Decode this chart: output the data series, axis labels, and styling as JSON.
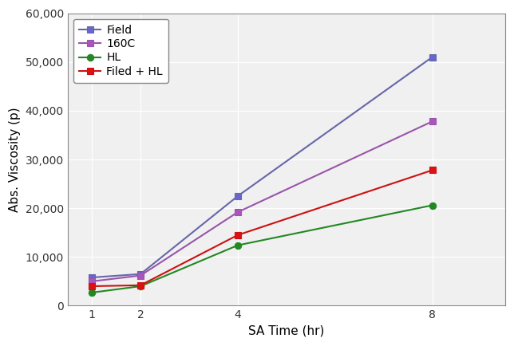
{
  "x": [
    1,
    2,
    4,
    8
  ],
  "series": {
    "Field": {
      "values": [
        5800,
        6500,
        22500,
        51000
      ],
      "color": "#6666aa",
      "marker": "s",
      "markerface": "#6666cc"
    },
    "160C": {
      "values": [
        5000,
        6200,
        19200,
        37800
      ],
      "color": "#9955aa",
      "marker": "s",
      "markerface": "#aa55bb"
    },
    "HL": {
      "values": [
        2700,
        4000,
        12400,
        20600
      ],
      "color": "#228822",
      "marker": "o",
      "markerface": "#228822"
    },
    "Filed + HL": {
      "values": [
        4000,
        4200,
        14500,
        27800
      ],
      "color": "#cc1111",
      "marker": "s",
      "markerface": "#dd1111"
    }
  },
  "xlabel": "SA Time (hr)",
  "ylabel": "Abs. Viscosity (p)",
  "ylim": [
    0,
    60000
  ],
  "yticks": [
    0,
    10000,
    20000,
    30000,
    40000,
    50000,
    60000
  ],
  "xticks": [
    1,
    2,
    4,
    8
  ],
  "legend_order": [
    "Field",
    "160C",
    "HL",
    "Filed + HL"
  ],
  "plot_bg_color": "#f0f0f0",
  "fig_bg_color": "#ffffff",
  "grid_color": "#ffffff",
  "spine_color": "#888888"
}
